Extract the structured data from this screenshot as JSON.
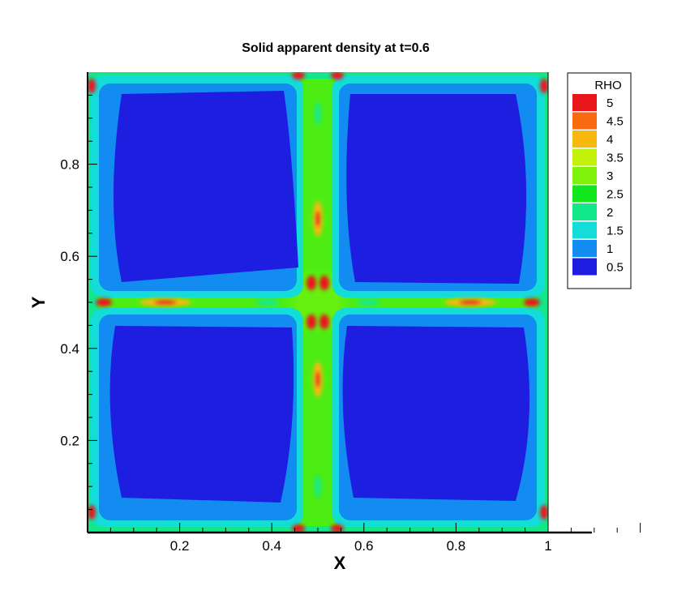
{
  "chart_data": {
    "type": "heatmap",
    "title": "Solid apparent density at t=0.6",
    "xlabel": "X",
    "ylabel": "Y",
    "xlim": [
      0,
      1
    ],
    "ylim": [
      0,
      1
    ],
    "x_ticks": [
      "0.2",
      "0.4",
      "0.6",
      "0.8",
      "1"
    ],
    "x_tick_values": [
      0.2,
      0.4,
      0.6,
      0.8,
      1.0
    ],
    "y_ticks": [
      "0.2",
      "0.4",
      "0.6",
      "0.8"
    ],
    "y_tick_values": [
      0.2,
      0.4,
      0.6,
      0.8
    ],
    "colorbar": {
      "title": "RHO",
      "levels": [
        "5",
        "4.5",
        "4",
        "3.5",
        "3",
        "2.5",
        "2",
        "1.5",
        "1",
        "0.5"
      ],
      "level_values": [
        5,
        4.5,
        4,
        3.5,
        3,
        2.5,
        2,
        1.5,
        1,
        0.5
      ],
      "colors": [
        "#e8161a",
        "#f86a10",
        "#f9b80e",
        "#c3f20a",
        "#7ef20a",
        "#12e81e",
        "#12e88a",
        "#14dcd8",
        "#128cf0",
        "#1e1ee0"
      ]
    },
    "grid": false,
    "legend_position": "right",
    "field_description_values": {
      "low_density_blocks_rho": 0.5,
      "interface_bands_rho": 3,
      "peak_spots_rho": 5
    }
  }
}
